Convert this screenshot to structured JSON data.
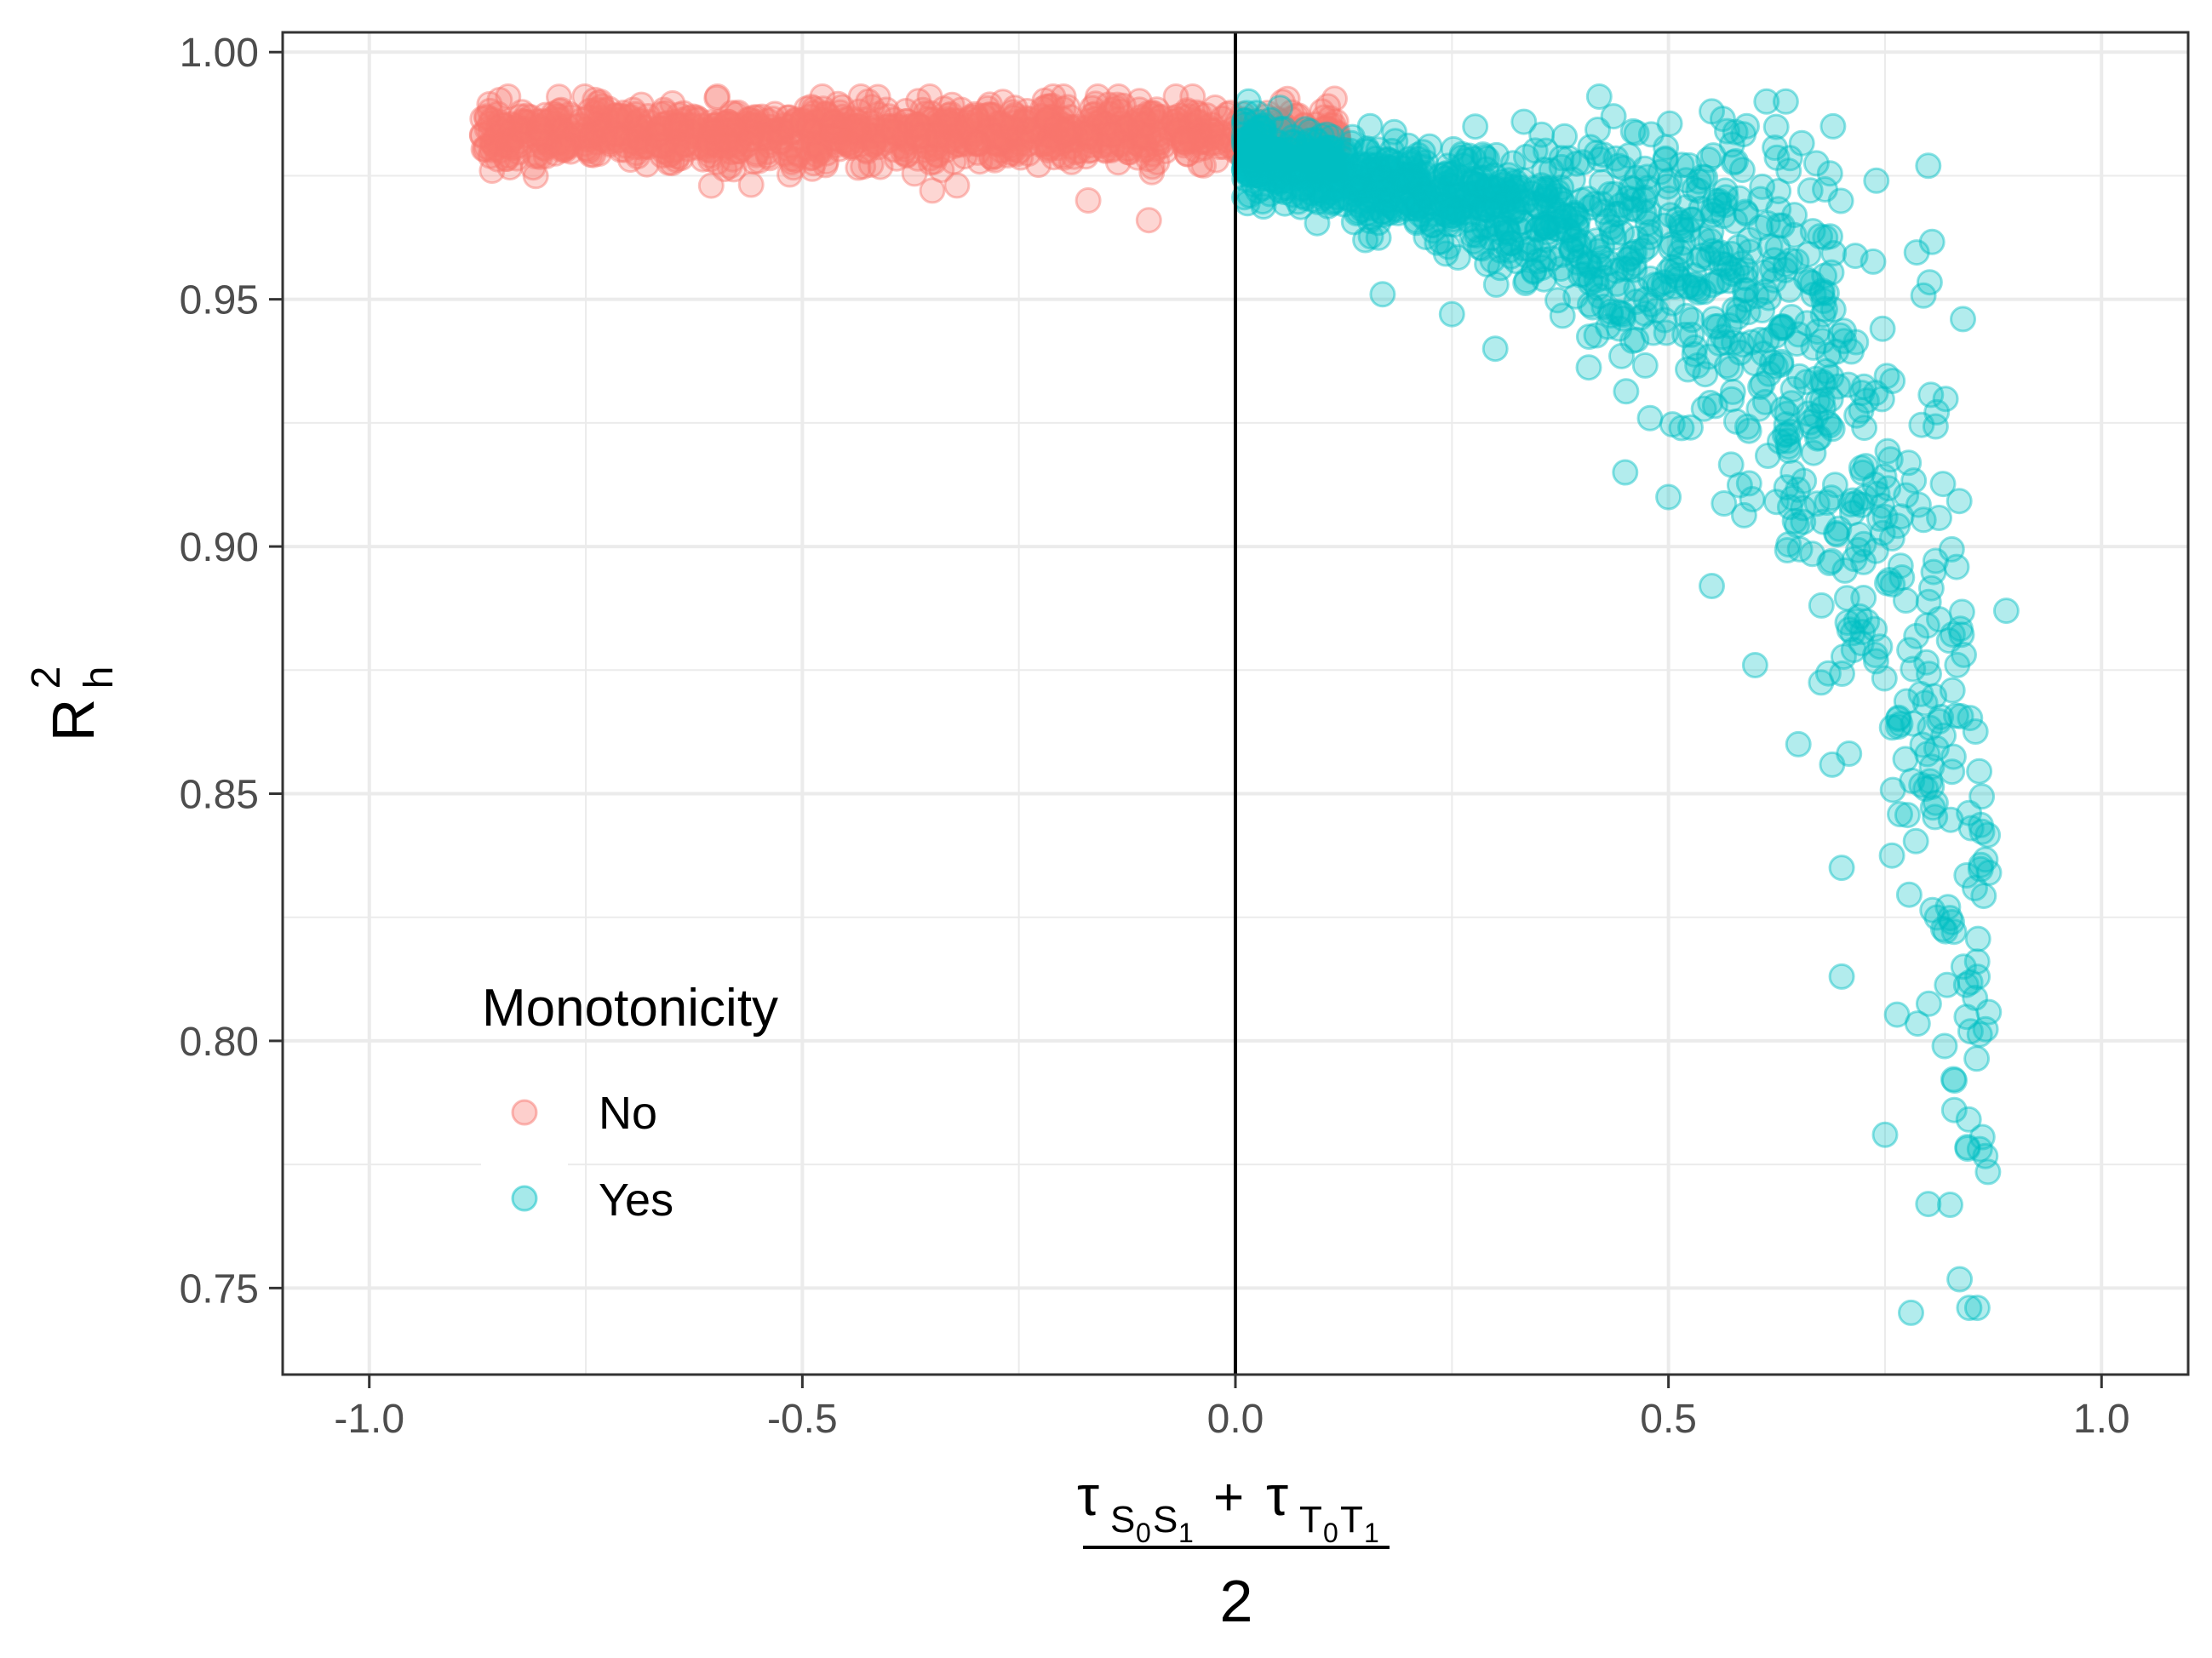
{
  "chart_data": {
    "type": "scatter",
    "title": "",
    "xlabel": {
      "tau": "τ",
      "sub_s": "S",
      "sub_s0": "0",
      "sub_s1_letter": "S",
      "sub_s1": "1",
      "plus": "+",
      "sub_t": "T",
      "sub_t0": "0",
      "sub_t1_letter": "T",
      "sub_t1": "1",
      "denominator": "2"
    },
    "ylabel": {
      "base": "R",
      "sup": "2",
      "sub": "h"
    },
    "xlim": [
      -1.1,
      1.1
    ],
    "ylim": [
      0.7325,
      1.004
    ],
    "x_ticks": [
      -1.0,
      -0.5,
      0.0,
      0.5,
      1.0
    ],
    "x_tick_labels": [
      "-1.0",
      "-0.5",
      "0.0",
      "0.5",
      "1.0"
    ],
    "y_ticks": [
      0.75,
      0.8,
      0.85,
      0.9,
      0.95,
      1.0
    ],
    "y_tick_labels": [
      "0.75",
      "0.80",
      "0.85",
      "0.90",
      "0.95",
      "1.00"
    ],
    "grid": true,
    "reference_line": {
      "x": 0.0,
      "color": "#000000"
    },
    "legend": {
      "title": "Monotonicity",
      "placement": "bottom-left inside",
      "entries": [
        "No",
        "Yes"
      ]
    },
    "series": [
      {
        "name": "No",
        "color": "#F8766D",
        "x_range": [
          -0.87,
          0.12
        ],
        "y_band": [
          0.965,
          0.991
        ],
        "sample_points": [
          [
            -0.86,
            0.979
          ],
          [
            -0.84,
            0.981
          ],
          [
            -0.8,
            0.986
          ],
          [
            -0.75,
            0.983
          ],
          [
            -0.7,
            0.987
          ],
          [
            -0.65,
            0.98
          ],
          [
            -0.6,
            0.984
          ],
          [
            -0.55,
            0.978
          ],
          [
            -0.5,
            0.986
          ],
          [
            -0.45,
            0.982
          ],
          [
            -0.4,
            0.985
          ],
          [
            -0.35,
            0.972
          ],
          [
            -0.3,
            0.987
          ],
          [
            -0.25,
            0.98
          ],
          [
            -0.2,
            0.984
          ],
          [
            -0.17,
            0.97
          ],
          [
            -0.12,
            0.985
          ],
          [
            -0.1,
            0.966
          ],
          [
            -0.05,
            0.982
          ],
          [
            0.0,
            0.98
          ],
          [
            0.05,
            0.986
          ],
          [
            0.1,
            0.988
          ]
        ]
      },
      {
        "name": "Yes",
        "color": "#00BFC4",
        "x_range": [
          0.0,
          0.89
        ],
        "y_band": [
          0.745,
          0.991
        ],
        "sample_points": [
          [
            0.02,
            0.983
          ],
          [
            0.05,
            0.975
          ],
          [
            0.1,
            0.98
          ],
          [
            0.15,
            0.962
          ],
          [
            0.17,
            0.951
          ],
          [
            0.2,
            0.975
          ],
          [
            0.25,
            0.947
          ],
          [
            0.3,
            0.94
          ],
          [
            0.35,
            0.96
          ],
          [
            0.4,
            0.97
          ],
          [
            0.42,
            0.991
          ],
          [
            0.45,
            0.915
          ],
          [
            0.5,
            0.91
          ],
          [
            0.55,
            0.988
          ],
          [
            0.55,
            0.892
          ],
          [
            0.6,
            0.876
          ],
          [
            0.65,
            0.86
          ],
          [
            0.69,
            0.985
          ],
          [
            0.7,
            0.835
          ],
          [
            0.7,
            0.813
          ],
          [
            0.74,
            0.974
          ],
          [
            0.75,
            0.781
          ],
          [
            0.78,
            0.745
          ],
          [
            0.8,
            0.977
          ],
          [
            0.8,
            0.767
          ],
          [
            0.83,
            0.786
          ],
          [
            0.84,
            0.946
          ],
          [
            0.87,
            0.834
          ],
          [
            0.89,
            0.887
          ]
        ]
      }
    ]
  }
}
